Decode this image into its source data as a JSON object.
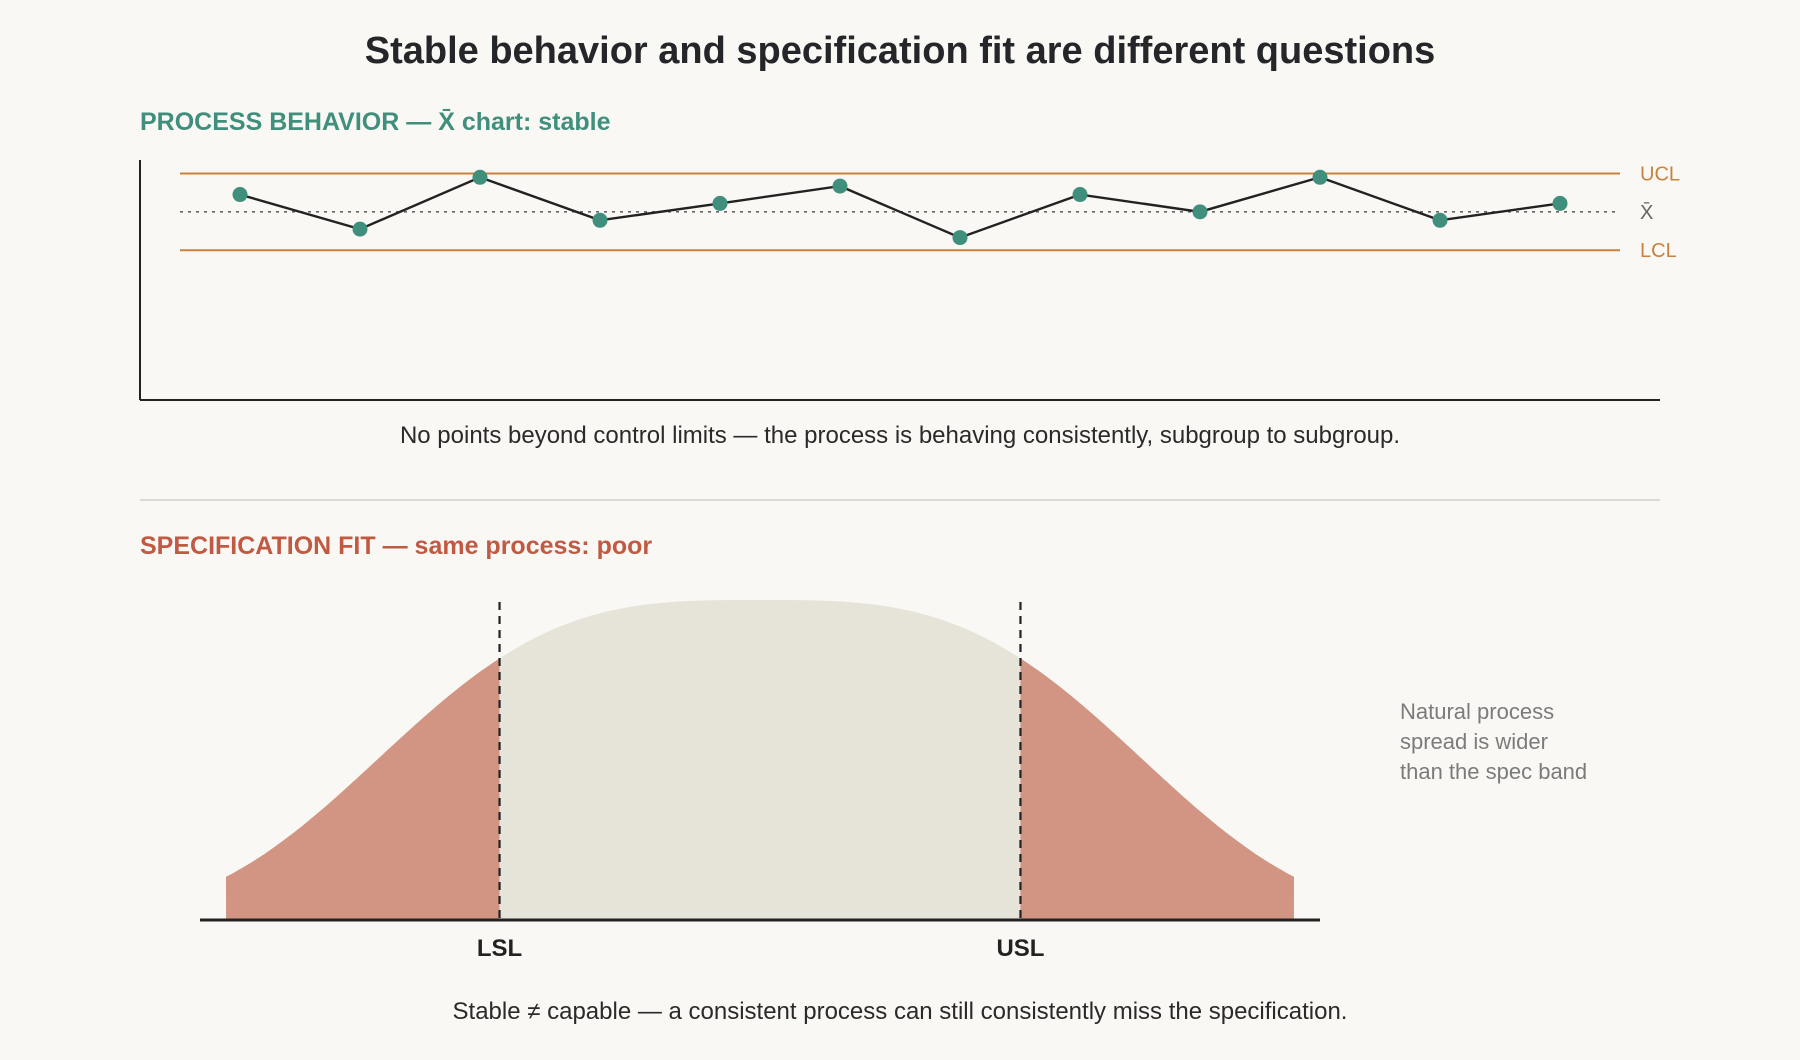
{
  "title": "Stable behavior and specification fit are different questions",
  "process_behavior": {
    "heading": "PROCESS BEHAVIOR — X̄ chart: stable",
    "caption": "No points beyond control limits — the process is behaving consistently, subgroup to subgroup."
  },
  "specification_fit": {
    "heading": "SPECIFICATION FIT — same process: poor",
    "caption": "Stable ≠ capable — a consistent process can still consistently miss the specification.",
    "note": [
      "Natural process",
      "spread is wider",
      "than the spec band"
    ]
  },
  "chart_data": [
    {
      "type": "line",
      "x": [
        1,
        2,
        3,
        4,
        5,
        6,
        7,
        8,
        9,
        10,
        11,
        12
      ],
      "series": [
        {
          "values": [
            0.45,
            -0.45,
            0.9,
            -0.22,
            0.22,
            0.67,
            -0.67,
            0.45,
            0.0,
            0.9,
            -0.22,
            0.22
          ]
        }
      ],
      "reference_lines": [
        {
          "label": "UCL",
          "value": 1.0,
          "color": "#c8823d"
        },
        {
          "label": "X̄",
          "value": 0.0,
          "color": "#666666"
        },
        {
          "label": "LCL",
          "value": -1.0,
          "color": "#c8823d"
        }
      ],
      "ylim": [
        -4.9,
        1.35
      ],
      "colors": {
        "line": "#222222",
        "points": "#3f8f7c"
      }
    },
    {
      "type": "area",
      "spec_limits": [
        {
          "label": "LSL",
          "value": -1.0
        },
        {
          "label": "USL",
          "value": 1.0
        }
      ],
      "xlim": [
        -2.15,
        2.15
      ],
      "ylim": [
        0,
        1.0
      ],
      "regions": [
        {
          "name": "within spec",
          "color": "#e6e3d9"
        },
        {
          "name": "outside spec",
          "color": "#d29584"
        }
      ]
    }
  ]
}
